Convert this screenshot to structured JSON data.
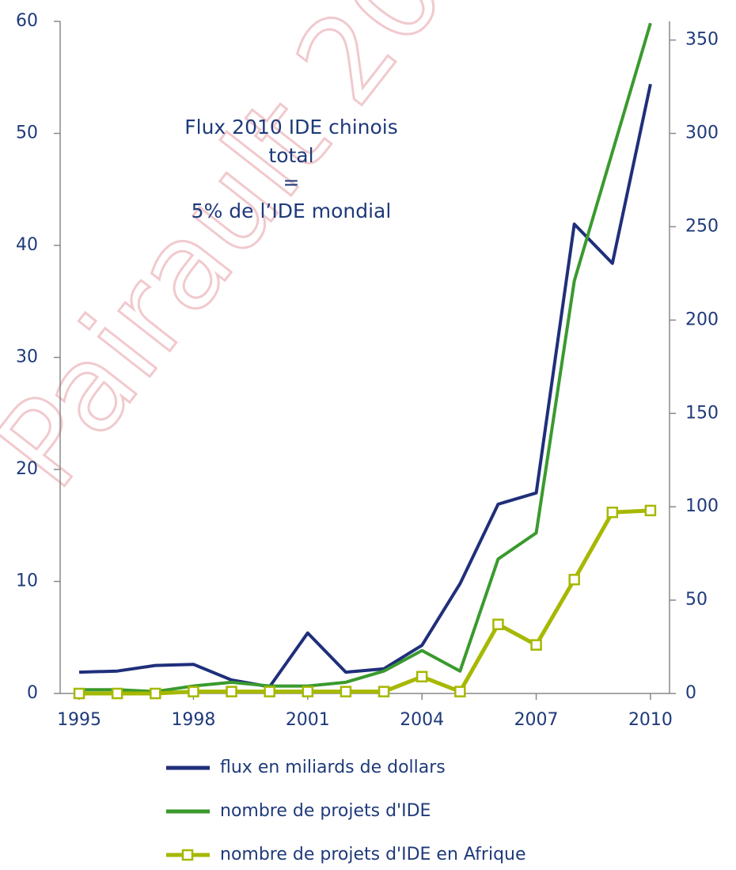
{
  "chart_data": {
    "type": "line",
    "annotation": [
      "Flux 2010 IDE chinois",
      "total",
      "=",
      "5% de l’IDE mondial"
    ],
    "watermark": "Pairault 20",
    "x": [
      1995,
      1996,
      1997,
      1998,
      1999,
      2000,
      2001,
      2002,
      2003,
      2004,
      2005,
      2006,
      2007,
      2008,
      2009,
      2010
    ],
    "xlim": [
      1994.5,
      2010.5
    ],
    "xticks": [
      1995,
      1998,
      2001,
      2004,
      2007,
      2010
    ],
    "ylim": [
      0,
      60
    ],
    "yticks": [
      0,
      10,
      20,
      30,
      40,
      50,
      60
    ],
    "y2lim": [
      0,
      360
    ],
    "y2ticks": [
      0,
      50,
      100,
      150,
      200,
      250,
      300,
      350
    ],
    "series": [
      {
        "name": "flux en miliards de dollars",
        "color": "#1f2f7a",
        "values": [
          1.9,
          2.0,
          2.5,
          2.6,
          1.2,
          0.6,
          5.4,
          1.9,
          2.2,
          4.3,
          9.8,
          16.9,
          17.9,
          41.9,
          38.4,
          54.4
        ]
      },
      {
        "name": "nombre de projets d'IDE",
        "color": "#3a9a2e",
        "axis": "y2",
        "values": [
          2,
          2,
          1,
          4,
          6,
          4,
          4,
          6,
          12,
          23,
          12,
          72,
          86,
          221,
          290,
          359
        ]
      },
      {
        "name": "nombre de projets d'IDE en Afrique",
        "color": "#a6b800",
        "axis": "y2",
        "marker": "square",
        "values": [
          0,
          0,
          0,
          1,
          1,
          1,
          1,
          1,
          1,
          9,
          1,
          37,
          26,
          61,
          97,
          98
        ]
      }
    ]
  }
}
